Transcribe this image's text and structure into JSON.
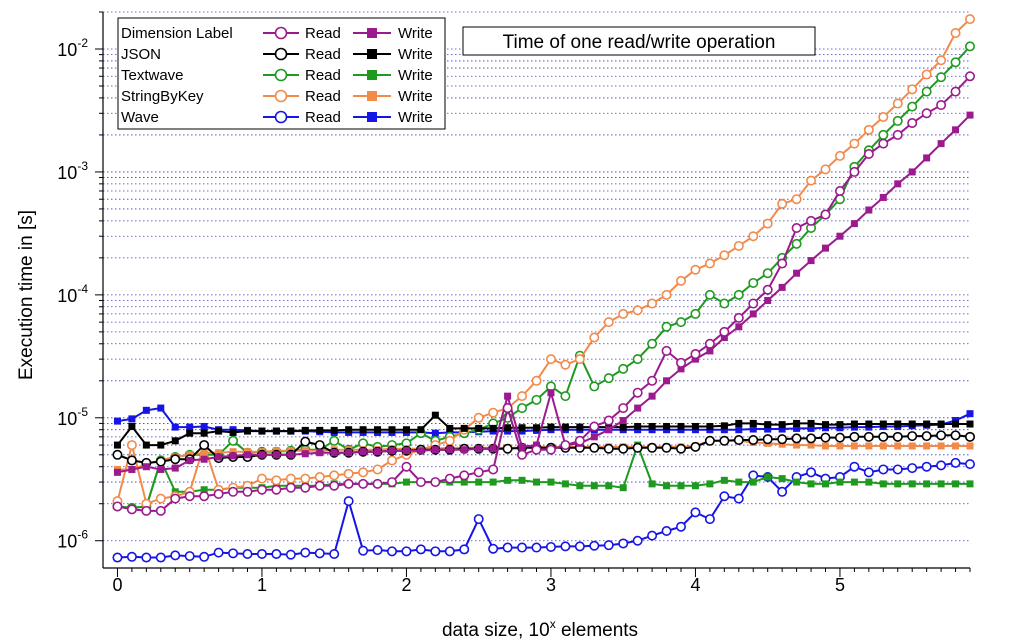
{
  "chart_data": {
    "type": "line",
    "title": "Time of one read/write operation",
    "xlabel_prefix": "data size, 10",
    "xlabel_sup": "x",
    "xlabel_suffix": " elements",
    "ylabel": "Execution time  in [s]",
    "xlim": [
      -0.1,
      5.9
    ],
    "ylim": [
      6e-07,
      0.02
    ],
    "yscale": "log",
    "xticks": [
      "0",
      "1",
      "2",
      "3",
      "4",
      "5"
    ],
    "yticks": [
      {
        "base": "10",
        "exp": "-6",
        "value": 1e-06
      },
      {
        "base": "10",
        "exp": "-5",
        "value": 1e-05
      },
      {
        "base": "10",
        "exp": "-4",
        "value": 0.0001
      },
      {
        "base": "10",
        "exp": "-3",
        "value": 0.001
      },
      {
        "base": "10",
        "exp": "-2",
        "value": 0.01
      }
    ],
    "grid": "horizontal dotted at minor log ticks",
    "legend_placement": "top-left",
    "legend_read": "Read",
    "legend_write": "Write",
    "x": [
      0,
      0.1,
      0.2,
      0.3,
      0.4,
      0.5,
      0.6,
      0.7,
      0.8,
      0.9,
      1.0,
      1.1,
      1.2,
      1.3,
      1.4,
      1.5,
      1.6,
      1.7,
      1.8,
      1.9,
      2.0,
      2.1,
      2.2,
      2.3,
      2.4,
      2.5,
      2.6,
      2.7,
      2.8,
      2.9,
      3.0,
      3.1,
      3.2,
      3.3,
      3.4,
      3.5,
      3.6,
      3.7,
      3.8,
      3.9,
      4.0,
      4.1,
      4.2,
      4.3,
      4.4,
      4.5,
      4.6,
      4.7,
      4.8,
      4.9,
      5.0,
      5.1,
      5.2,
      5.3,
      5.4,
      5.5,
      5.6,
      5.7,
      5.8,
      5.9
    ],
    "series": [
      {
        "name": "Dimension Label",
        "color": "#9b1a8e",
        "read": [
          1.9e-06,
          1.8e-06,
          1.75e-06,
          1.75e-06,
          2.2e-06,
          2.3e-06,
          2.3e-06,
          2.4e-06,
          2.5e-06,
          2.5e-06,
          2.6e-06,
          2.6e-06,
          2.7e-06,
          2.7e-06,
          2.8e-06,
          2.8e-06,
          2.9e-06,
          2.9e-06,
          2.9e-06,
          3e-06,
          4e-06,
          3e-06,
          3e-06,
          3.2e-06,
          3.4e-06,
          3.6e-06,
          3.8e-06,
          1.2e-05,
          5e-06,
          5.5e-06,
          5.5e-06,
          6e-06,
          6.5e-06,
          8.5e-06,
          9.5e-06,
          1.2e-05,
          1.6e-05,
          2e-05,
          3.5e-05,
          2.8e-05,
          3.3e-05,
          4e-05,
          5e-05,
          6.5e-05,
          8.5e-05,
          0.00011,
          0.00018,
          0.00035,
          0.0004,
          0.00045,
          0.0007,
          0.001,
          0.0014,
          0.0017,
          0.002,
          0.0025,
          0.003,
          0.0035,
          0.0045,
          0.006
        ],
        "write": [
          3.6e-06,
          3.8e-06,
          4e-06,
          3.8e-06,
          3.9e-06,
          4.5e-06,
          4.6e-06,
          4.8e-06,
          4.9e-06,
          5e-06,
          5e-06,
          5e-06,
          5e-06,
          5.1e-06,
          5.2e-06,
          5.2e-06,
          5.2e-06,
          5.3e-06,
          5.3e-06,
          5.4e-06,
          5.4e-06,
          5.4e-06,
          5.5e-06,
          5.5e-06,
          5.5e-06,
          5.6e-06,
          5.6e-06,
          1.5e-05,
          5.8e-06,
          6e-06,
          1.6e-05,
          6e-06,
          6.2e-06,
          7e-06,
          8e-06,
          9.5e-06,
          1.2e-05,
          1.5e-05,
          2e-05,
          2.5e-05,
          3e-05,
          3.5e-05,
          4.5e-05,
          5.5e-05,
          7e-05,
          9e-05,
          0.000115,
          0.00015,
          0.00019,
          0.00024,
          0.0003,
          0.00038,
          0.00049,
          0.00062,
          0.0008,
          0.001,
          0.0013,
          0.0017,
          0.0022,
          0.0029
        ]
      },
      {
        "name": "JSON",
        "color": "#000000",
        "read": [
          5e-06,
          4.5e-06,
          4.3e-06,
          4.4e-06,
          4.6e-06,
          4.6e-06,
          6e-06,
          4.7e-06,
          4.8e-06,
          4.8e-06,
          5e-06,
          5e-06,
          5e-06,
          6.4e-06,
          6e-06,
          5.2e-06,
          5.2e-06,
          5.3e-06,
          5.3e-06,
          5.4e-06,
          5.4e-06,
          5.5e-06,
          5.5e-06,
          5.5e-06,
          5.6e-06,
          5.6e-06,
          5.6e-06,
          5.6e-06,
          5.7e-06,
          5.7e-06,
          5.7e-06,
          5.7e-06,
          5.7e-06,
          5.7e-06,
          5.6e-06,
          5.6e-06,
          5.7e-06,
          5.7e-06,
          5.7e-06,
          5.6e-06,
          5.8e-06,
          6.5e-06,
          6.5e-06,
          6.6e-06,
          6.6e-06,
          6.7e-06,
          6.7e-06,
          6.8e-06,
          6.8e-06,
          6.9e-06,
          6.9e-06,
          7e-06,
          7e-06,
          7e-06,
          7e-06,
          7.1e-06,
          7.1e-06,
          7.2e-06,
          7.2e-06,
          7e-06
        ],
        "write": [
          6e-06,
          8.5e-06,
          6e-06,
          6e-06,
          6.5e-06,
          7.5e-06,
          7.5e-06,
          7.8e-06,
          7.6e-06,
          7.8e-06,
          7.8e-06,
          7.8e-06,
          7.8e-06,
          7.9e-06,
          7.9e-06,
          7.9e-06,
          8e-06,
          8e-06,
          8e-06,
          8e-06,
          8e-06,
          8e-06,
          1.05e-05,
          8.2e-06,
          8.2e-06,
          8.2e-06,
          8.2e-06,
          8.3e-06,
          8.3e-06,
          8.3e-06,
          8.4e-06,
          8.4e-06,
          8.4e-06,
          8.4e-06,
          8.4e-06,
          8.4e-06,
          8.5e-06,
          8.5e-06,
          8.5e-06,
          8.5e-06,
          8.5e-06,
          8.5e-06,
          8.6e-06,
          9e-06,
          9e-06,
          8.8e-06,
          8.8e-06,
          9e-06,
          9e-06,
          8.8e-06,
          8.8e-06,
          8.9e-06,
          8.9e-06,
          8.9e-06,
          8.9e-06,
          8.9e-06,
          8.9e-06,
          8.9e-06,
          8.9e-06,
          8.9e-06
        ]
      },
      {
        "name": "Textwave",
        "color": "#1f9a1f",
        "read": [
          1.9e-06,
          1.85e-06,
          1.9e-06,
          4.5e-06,
          4.8e-06,
          5e-06,
          5e-06,
          5e-06,
          6.5e-06,
          5.2e-06,
          5.3e-06,
          5.3e-06,
          5.4e-06,
          5.5e-06,
          5.5e-06,
          6.5e-06,
          5.5e-06,
          6.2e-06,
          5.8e-06,
          6e-06,
          6.2e-06,
          7.5e-06,
          6.5e-06,
          7e-06,
          7.5e-06,
          8e-06,
          9e-06,
          1e-05,
          1.2e-05,
          1.4e-05,
          1.8e-05,
          1.5e-05,
          3.2e-05,
          1.8e-05,
          2.1e-05,
          2.5e-05,
          3e-05,
          4e-05,
          5.5e-05,
          6e-05,
          7e-05,
          0.0001,
          8.5e-05,
          0.0001,
          0.000125,
          0.00015,
          0.0002,
          0.00026,
          0.00035,
          0.00045,
          0.0006,
          0.0011,
          0.0015,
          0.002,
          0.0026,
          0.0034,
          0.0045,
          0.0059,
          0.0078,
          0.0105
        ],
        "write": [
          1.9e-06,
          1.85e-06,
          1.9e-06,
          4.5e-06,
          2.5e-06,
          2.5e-06,
          2.6e-06,
          2.6e-06,
          2.7e-06,
          2.7e-06,
          2.7e-06,
          2.8e-06,
          2.8e-06,
          2.8e-06,
          2.8e-06,
          2.9e-06,
          2.9e-06,
          2.9e-06,
          2.9e-06,
          2.9e-06,
          3e-06,
          3e-06,
          3e-06,
          3e-06,
          3e-06,
          3e-06,
          3e-06,
          3.1e-06,
          3.1e-06,
          3e-06,
          3e-06,
          2.9e-06,
          2.8e-06,
          2.8e-06,
          2.8e-06,
          2.7e-06,
          6e-06,
          2.9e-06,
          2.8e-06,
          2.8e-06,
          2.8e-06,
          2.9e-06,
          3.1e-06,
          3e-06,
          3e-06,
          3.3e-06,
          3.2e-06,
          3e-06,
          2.9e-06,
          2.9e-06,
          3e-06,
          3e-06,
          3e-06,
          2.9e-06,
          2.9e-06,
          2.9e-06,
          2.9e-06,
          2.9e-06,
          2.9e-06,
          2.9e-06
        ]
      },
      {
        "name": "StringByKey",
        "color": "#f28a4a",
        "read": [
          2.1e-06,
          6e-06,
          2e-06,
          2.2e-06,
          2.3e-06,
          2.5e-06,
          6e-06,
          2.6e-06,
          2.7e-06,
          2.8e-06,
          3.2e-06,
          3.1e-06,
          3.2e-06,
          3.2e-06,
          3.3e-06,
          3.4e-06,
          3.5e-06,
          3.6e-06,
          3.8e-06,
          4.5e-06,
          5e-06,
          5.5e-06,
          6e-06,
          6.5e-06,
          8e-06,
          1e-05,
          1.1e-05,
          1.2e-05,
          1.5e-05,
          2e-05,
          3e-05,
          2.7e-05,
          3e-05,
          4.5e-05,
          6e-05,
          7e-05,
          7.5e-05,
          8.5e-05,
          0.0001,
          0.00013,
          0.00016,
          0.00018,
          0.00021,
          0.00025,
          0.0003,
          0.00038,
          0.00055,
          0.0006,
          0.00085,
          0.00105,
          0.00135,
          0.0017,
          0.0022,
          0.0028,
          0.0036,
          0.0047,
          0.0062,
          0.0081,
          0.0135,
          0.0175
        ],
        "write": [
          3.8e-06,
          3.8e-06,
          4.2e-06,
          4.5e-06,
          4.8e-06,
          5e-06,
          5.2e-06,
          5.2e-06,
          5.3e-06,
          5.3e-06,
          5.3e-06,
          5.4e-06,
          5.4e-06,
          5.4e-06,
          5.4e-06,
          5.5e-06,
          5.5e-06,
          5.5e-06,
          5.5e-06,
          5.6e-06,
          5.6e-06,
          5.6e-06,
          5.6e-06,
          5.7e-06,
          5.7e-06,
          5.7e-06,
          5.7e-06,
          5.7e-06,
          5.7e-06,
          5.8e-06,
          5.8e-06,
          5.8e-06,
          5.8e-06,
          5.8e-06,
          5.8e-06,
          5.8e-06,
          5.8e-06,
          5.8e-06,
          5.8e-06,
          5.8e-06,
          5.9e-06,
          6.5e-06,
          6.5e-06,
          6.5e-06,
          6.3e-06,
          6.2e-06,
          6.1e-06,
          6e-06,
          6e-06,
          5.9e-06,
          5.9e-06,
          5.9e-06,
          5.9e-06,
          5.9e-06,
          5.9e-06,
          5.9e-06,
          5.9e-06,
          5.9e-06,
          5.9e-06,
          5.9e-06
        ]
      },
      {
        "name": "Wave",
        "color": "#1515e6",
        "read": [
          7.3e-07,
          7.4e-07,
          7.3e-07,
          7.3e-07,
          7.6e-07,
          7.5e-07,
          7.4e-07,
          8e-07,
          7.9e-07,
          7.8e-07,
          7.8e-07,
          7.8e-07,
          7.7e-07,
          8e-07,
          7.9e-07,
          7.8e-07,
          2.1e-06,
          8.3e-07,
          8.4e-07,
          8.2e-07,
          8.2e-07,
          8.5e-07,
          8.2e-07,
          8.2e-07,
          8.5e-07,
          1.5e-06,
          8.6e-07,
          8.8e-07,
          8.8e-07,
          8.8e-07,
          8.9e-07,
          9e-07,
          9e-07,
          9.1e-07,
          9.2e-07,
          9.5e-07,
          1e-06,
          1.1e-06,
          1.2e-06,
          1.3e-06,
          1.7e-06,
          1.5e-06,
          2.3e-06,
          2.2e-06,
          3.4e-06,
          3.3e-06,
          2.5e-06,
          3.3e-06,
          3.6e-06,
          3.2e-06,
          3.3e-06,
          4e-06,
          3.6e-06,
          3.8e-06,
          3.8e-06,
          3.9e-06,
          4e-06,
          4.1e-06,
          4.3e-06,
          4.2e-06
        ],
        "write": [
          9.4e-06,
          9.8e-06,
          1.15e-05,
          1.2e-05,
          8.4e-06,
          8.4e-06,
          8.5e-06,
          8e-06,
          8e-06,
          7.9e-06,
          7.8e-06,
          7.8e-06,
          7.8e-06,
          7.8e-06,
          7.7e-06,
          7.6e-06,
          7.6e-06,
          7.6e-06,
          7.6e-06,
          7.6e-06,
          7.6e-06,
          7.6e-06,
          7.5e-06,
          7.6e-06,
          7.6e-06,
          7.7e-06,
          7.8e-06,
          7.8e-06,
          7.8e-06,
          7.9e-06,
          8e-06,
          8e-06,
          8e-06,
          8e-06,
          8e-06,
          8e-06,
          8e-06,
          8e-06,
          8e-06,
          8e-06,
          8e-06,
          8e-06,
          8e-06,
          8e-06,
          8.1e-06,
          8.1e-06,
          8.1e-06,
          8.2e-06,
          8.2e-06,
          8.3e-06,
          8.3e-06,
          8.4e-06,
          8.4e-06,
          8.5e-06,
          8.5e-06,
          8.6e-06,
          8.7e-06,
          8.8e-06,
          9.5e-06,
          1.08e-05
        ]
      }
    ]
  }
}
